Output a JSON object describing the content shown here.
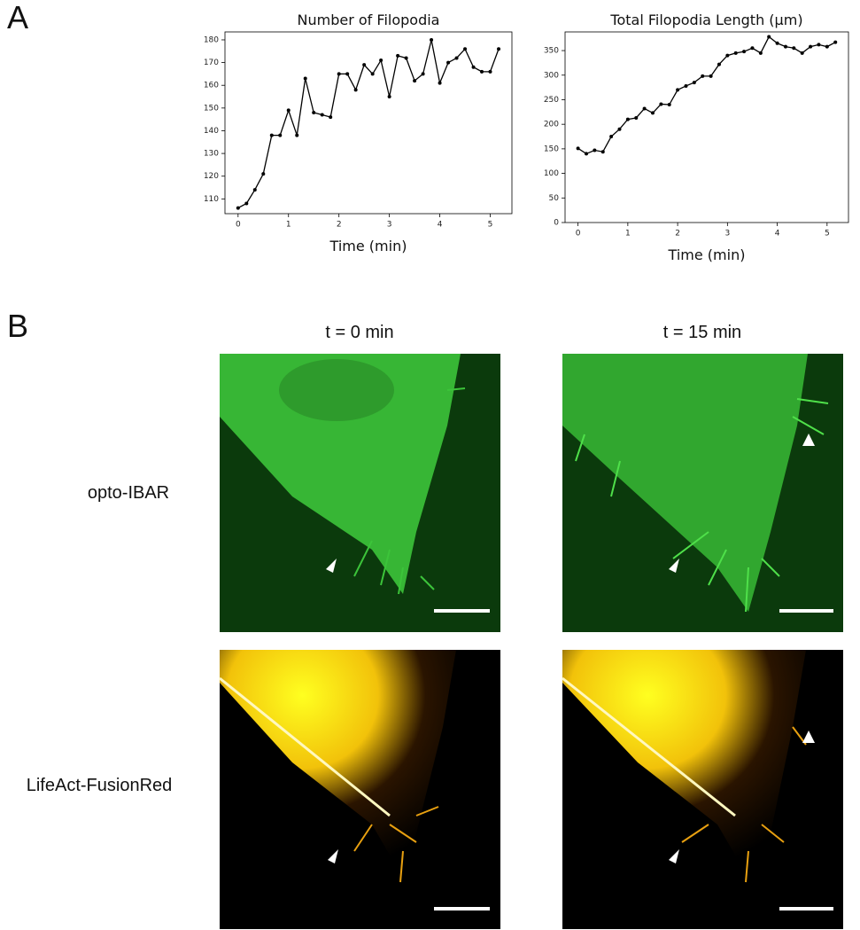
{
  "panel_labels": [
    "A",
    "B"
  ],
  "columns": [
    "t = 0 min",
    "t = 15 min"
  ],
  "rows": [
    "opto-IBAR",
    "LifeAct-FusionRed"
  ],
  "chart_data": [
    {
      "type": "line",
      "title": "Number of Filopodia",
      "xlabel": "Time (min)",
      "x": [
        0,
        0.167,
        0.333,
        0.5,
        0.667,
        0.833,
        1,
        1.167,
        1.333,
        1.5,
        1.667,
        1.833,
        2,
        2.167,
        2.333,
        2.5,
        2.667,
        2.833,
        3,
        3.167,
        3.333,
        3.5,
        3.667,
        3.833,
        4,
        4.167,
        4.333,
        4.5,
        4.667,
        4.833,
        5,
        5.167
      ],
      "series": [
        {
          "color": "#000000",
          "values": [
            106,
            108,
            114,
            121,
            138,
            138,
            149,
            138,
            163,
            148,
            147,
            146,
            165,
            165,
            158,
            169,
            165,
            171,
            155,
            173,
            172,
            162,
            165,
            180,
            161,
            170,
            172,
            176,
            168,
            166,
            166,
            176
          ]
        }
      ],
      "xlim": [
        -0.26,
        5.43
      ],
      "xticks": [
        0,
        1,
        2,
        3,
        4,
        5
      ],
      "ylim": [
        103.5,
        183.5
      ],
      "yticks": [
        110,
        120,
        130,
        140,
        150,
        160,
        170,
        180
      ]
    },
    {
      "type": "line",
      "title": "Total Filopodia Length (μm)",
      "xlabel": "Time (min)",
      "x": [
        0,
        0.167,
        0.333,
        0.5,
        0.667,
        0.833,
        1,
        1.167,
        1.333,
        1.5,
        1.667,
        1.833,
        2,
        2.167,
        2.333,
        2.5,
        2.667,
        2.833,
        3,
        3.167,
        3.333,
        3.5,
        3.667,
        3.833,
        4,
        4.167,
        4.333,
        4.5,
        4.667,
        4.833,
        5,
        5.167
      ],
      "series": [
        {
          "color": "#000000",
          "values": [
            151,
            140,
            147,
            144,
            175,
            190,
            210,
            213,
            232,
            223,
            241,
            240,
            270,
            278,
            285,
            298,
            298,
            322,
            340,
            345,
            348,
            355,
            345,
            378,
            365,
            358,
            355,
            345,
            358,
            362,
            358,
            367
          ]
        }
      ],
      "xlim": [
        -0.26,
        5.43
      ],
      "xticks": [
        0,
        1,
        2,
        3,
        4,
        5
      ],
      "ylim": [
        0,
        388
      ],
      "yticks": [
        0,
        50,
        100,
        150,
        200,
        250,
        300,
        350
      ]
    }
  ]
}
